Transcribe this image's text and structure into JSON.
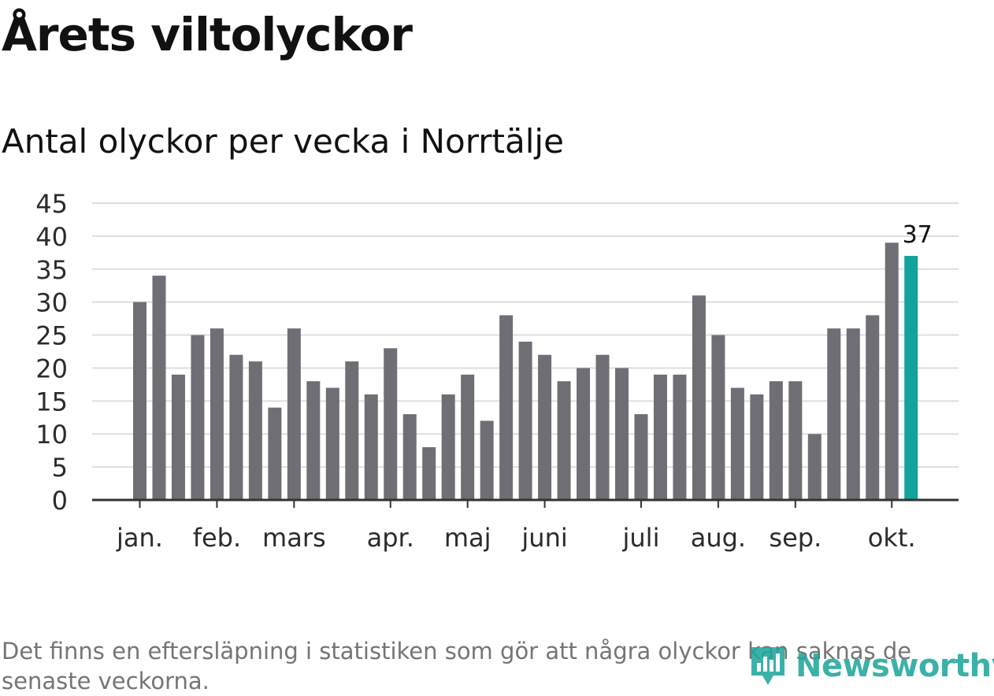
{
  "header": {
    "title": "Årets viltolyckor",
    "subtitle": "Antal olyckor per vecka i Norrtälje"
  },
  "footer": {
    "note": "Det finns en eftersläpning i statistiken som gör att några olyckor kan saknas de senaste veckorna.",
    "brand": "Newsworthy"
  },
  "colors": {
    "bar": "#6F6E75",
    "highlight": "#12A39A",
    "grid": "#DEDEDE",
    "axis": "#333333",
    "brand": "#20A79B"
  },
  "chart_data": {
    "type": "bar",
    "title": "Antal olyckor per vecka i Norrtälje",
    "xlabel": "",
    "ylabel": "",
    "ylim": [
      0,
      45
    ],
    "yticks": [
      0,
      5,
      10,
      15,
      20,
      25,
      30,
      35,
      40,
      45
    ],
    "grid": true,
    "values": [
      30,
      34,
      19,
      25,
      26,
      22,
      21,
      14,
      26,
      18,
      17,
      21,
      16,
      23,
      13,
      8,
      16,
      19,
      12,
      28,
      24,
      22,
      18,
      20,
      22,
      20,
      13,
      19,
      19,
      31,
      25,
      17,
      16,
      18,
      18,
      10,
      26,
      26,
      28,
      39,
      37
    ],
    "highlight_index": 40,
    "highlight_label": "37",
    "month_labels": [
      {
        "label": "jan.",
        "bar_index": 0
      },
      {
        "label": "feb.",
        "bar_index": 4
      },
      {
        "label": "mars",
        "bar_index": 8
      },
      {
        "label": "apr.",
        "bar_index": 13
      },
      {
        "label": "maj",
        "bar_index": 17
      },
      {
        "label": "juni",
        "bar_index": 21
      },
      {
        "label": "juli",
        "bar_index": 26
      },
      {
        "label": "aug.",
        "bar_index": 30
      },
      {
        "label": "sep.",
        "bar_index": 34
      },
      {
        "label": "okt.",
        "bar_index": 39
      }
    ]
  }
}
